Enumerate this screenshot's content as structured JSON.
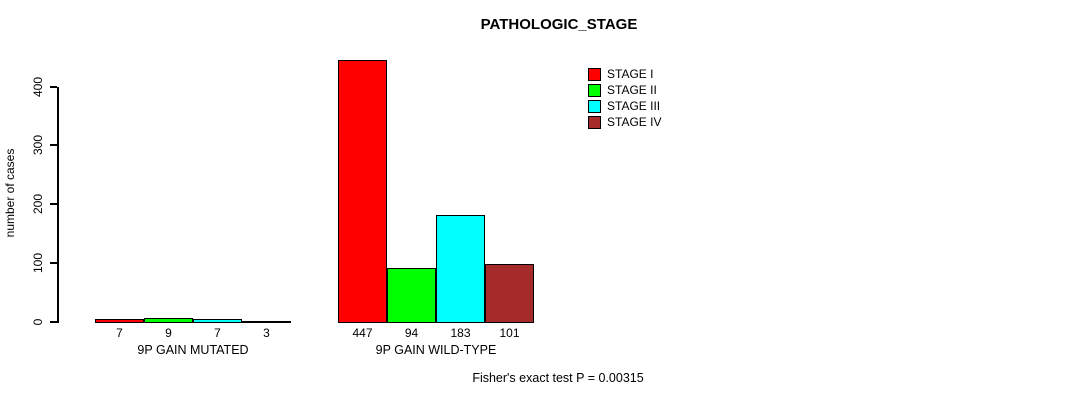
{
  "chart_data": {
    "type": "bar",
    "title": "PATHOLOGIC_STAGE",
    "ylabel": "number of cases",
    "xlabel": "",
    "ylim": [
      0,
      400
    ],
    "yticks": [
      0,
      100,
      200,
      300,
      400
    ],
    "grid": false,
    "legend_position": "top-right",
    "categories": [
      "9P GAIN MUTATED",
      "9P GAIN WILD-TYPE"
    ],
    "series": [
      {
        "name": "STAGE I",
        "color": "#ff0000",
        "values": [
          7,
          447
        ]
      },
      {
        "name": "STAGE II",
        "color": "#00ff00",
        "values": [
          9,
          94
        ]
      },
      {
        "name": "STAGE III",
        "color": "#00ffff",
        "values": [
          7,
          183
        ]
      },
      {
        "name": "STAGE IV",
        "color": "#a52a2a",
        "values": [
          3,
          101
        ]
      }
    ],
    "annotation": "Fisher's exact test P = 0.00315"
  }
}
